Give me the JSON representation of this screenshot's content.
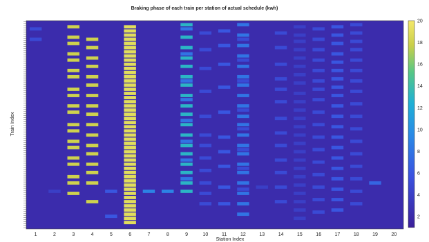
{
  "chart_data": {
    "type": "heatmap",
    "title": "Braking phase of each train per station of actual schedule (kwh)",
    "xlabel": "Station Index",
    "ylabel": "Train Index",
    "x": [
      1,
      2,
      3,
      4,
      5,
      6,
      7,
      8,
      9,
      10,
      11,
      12,
      13,
      14,
      15,
      16,
      17,
      18,
      19,
      20
    ],
    "n_trains": 100,
    "colorbar": {
      "min": 1,
      "max": 20,
      "ticks": [
        2,
        4,
        6,
        8,
        10,
        12,
        14,
        16,
        18,
        20
      ]
    },
    "colors": {
      "low": "#3b1f9a",
      "mid": "#1fb0d6",
      "high": "#f4e86a"
    },
    "cells": [
      {
        "station": 1,
        "trains": [
          4
        ],
        "value": 5
      },
      {
        "station": 1,
        "trains": [
          9
        ],
        "value": 5
      },
      {
        "station": 2,
        "trains": [
          82
        ],
        "value": 4
      },
      {
        "station": 3,
        "trains": [
          3,
          8,
          11,
          16,
          19,
          24,
          27,
          33,
          36,
          41,
          44,
          50,
          53,
          58,
          61,
          66,
          69,
          75,
          78,
          83
        ],
        "value": 18
      },
      {
        "station": 4,
        "trains": [
          9,
          13,
          18,
          22,
          27,
          31,
          36,
          41,
          45,
          50,
          55,
          60,
          64,
          69,
          73,
          78,
          87
        ],
        "value": 18
      },
      {
        "station": 5,
        "trains": [
          82,
          94
        ],
        "value": 6
      },
      {
        "station": 6,
        "trains": [
          3,
          5,
          7,
          9,
          11,
          13,
          15,
          17,
          19,
          21,
          23,
          25,
          27,
          29,
          31,
          33,
          35,
          37,
          39,
          41,
          43,
          45,
          47,
          49,
          51,
          53,
          55,
          57,
          59,
          61,
          63,
          65,
          67,
          69,
          71,
          73,
          75,
          77,
          79,
          81,
          83,
          85,
          87,
          89,
          91,
          93,
          95,
          97
        ],
        "value": 19
      },
      {
        "station": 7,
        "trains": [
          82
        ],
        "value": 9
      },
      {
        "station": 8,
        "trains": [
          82
        ],
        "value": 9
      },
      {
        "station": 9,
        "trains": [
          2,
          8,
          13,
          18,
          22,
          27,
          31,
          36,
          41,
          45,
          50,
          55,
          60,
          64,
          69,
          73,
          78,
          82
        ],
        "value": 13
      },
      {
        "station": 9,
        "trains": [
          4,
          16,
          29,
          38,
          48,
          58,
          67,
          76
        ],
        "value": 8
      },
      {
        "station": 10,
        "trains": [
          6,
          14,
          23,
          34,
          46,
          55,
          60,
          66,
          72,
          78,
          83,
          88
        ],
        "value": 5
      },
      {
        "station": 11,
        "trains": [
          5,
          12,
          21,
          32,
          44,
          56,
          63,
          70,
          80,
          88
        ],
        "value": 6
      },
      {
        "station": 12,
        "trains": [
          2,
          7,
          12,
          17,
          22,
          27,
          31,
          36,
          41,
          46,
          50,
          55,
          60,
          64,
          69,
          73,
          78,
          83,
          88,
          93
        ],
        "value": 8
      },
      {
        "station": 12,
        "trains": [
          9,
          19,
          29,
          43,
          52,
          62,
          71,
          81
        ],
        "value": 5
      },
      {
        "station": 13,
        "trains": [
          80
        ],
        "value": 4
      },
      {
        "station": 14,
        "trains": [
          6,
          13,
          21,
          28,
          33,
          39,
          47,
          54,
          60,
          67,
          73,
          80,
          87
        ],
        "value": 5
      },
      {
        "station": 15,
        "trains": [
          3,
          7,
          10,
          14,
          18,
          22,
          26,
          30,
          35,
          39,
          43,
          47,
          51,
          55,
          59,
          63,
          67,
          71,
          75,
          79,
          83,
          87,
          91,
          95
        ],
        "value": 4
      },
      {
        "station": 16,
        "trains": [
          4,
          9,
          14,
          19,
          24,
          29,
          33,
          38,
          44,
          50,
          56,
          62,
          68,
          74,
          80,
          86,
          92
        ],
        "value": 5
      },
      {
        "station": 17,
        "trains": [
          3,
          7,
          11,
          16,
          20,
          24,
          28,
          32,
          36,
          41,
          46,
          51,
          56,
          61,
          66,
          71,
          76,
          81,
          86,
          91
        ],
        "value": 6
      },
      {
        "station": 18,
        "trains": [
          2,
          6,
          10,
          14,
          19,
          24,
          29,
          34,
          40,
          46,
          52,
          58,
          64,
          70,
          76,
          82,
          88
        ],
        "value": 5
      },
      {
        "station": 19,
        "trains": [
          78
        ],
        "value": 7
      },
      {
        "station": 20,
        "trains": [],
        "value": 2
      }
    ]
  }
}
